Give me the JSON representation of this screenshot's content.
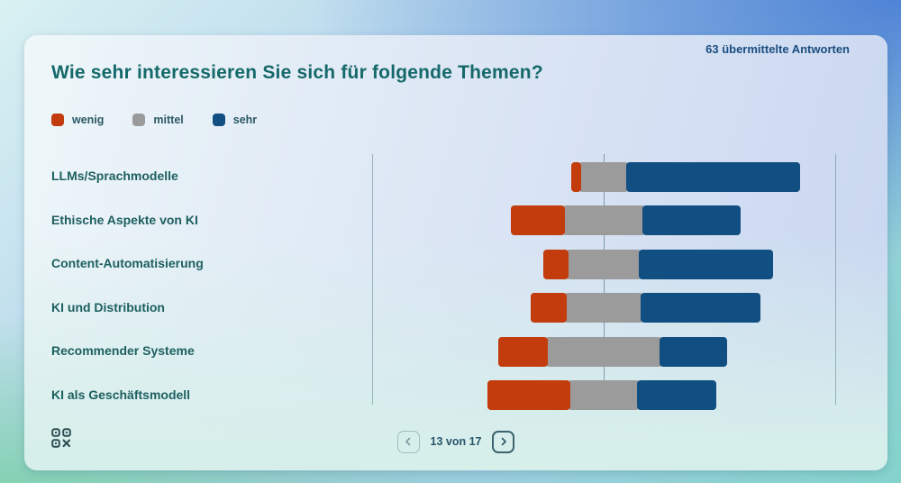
{
  "header": {
    "responses_label": "63 übermittelte Antworten",
    "title": "Wie sehr interessieren Sie sich für folgende Themen?"
  },
  "legend": [
    {
      "label": "wenig",
      "color": "#c23c0d"
    },
    {
      "label": "mittel",
      "color": "#9b9b9b"
    },
    {
      "label": "sehr",
      "color": "#114e82"
    }
  ],
  "chart_data": {
    "type": "bar",
    "variant": "horizontal-diverging-stacked",
    "title": "Wie sehr interessieren Sie sich für folgende Themen?",
    "total_responses_shown": "63 übermittelte Antworten",
    "unit": "percent of responses (estimated from bar lengths)",
    "categories": [
      "LLMs/Sprachmodelle",
      "Ethische Aspekte von KI",
      "Content-Automatisierung",
      "KI und Distribution",
      "Recommender Systeme",
      "KI als Geschäftsmodell"
    ],
    "series": [
      {
        "name": "wenig",
        "color": "#c23c0d",
        "values": [
          3.2,
          22.2,
          9.5,
          14.3,
          20.6,
          34.9
        ]
      },
      {
        "name": "mittel",
        "color": "#9b9b9b",
        "values": [
          22.2,
          36.5,
          33.3,
          34.9,
          50.8,
          31.7
        ]
      },
      {
        "name": "sehr",
        "color": "#114e82",
        "values": [
          74.6,
          41.3,
          57.1,
          50.8,
          28.6,
          33.3
        ]
      }
    ],
    "layout": {
      "legend_position": "top-left",
      "center_axis": "middle of 'mittel' segment aligned on central vertical line",
      "guide_lines": "left, center and right vertical hairlines",
      "grid": "off"
    }
  },
  "icons": {
    "qr": "qr-code-icon",
    "prev": "chevron-left-icon",
    "next": "chevron-right-icon"
  },
  "pagination": {
    "indicator": "13 von 17"
  }
}
